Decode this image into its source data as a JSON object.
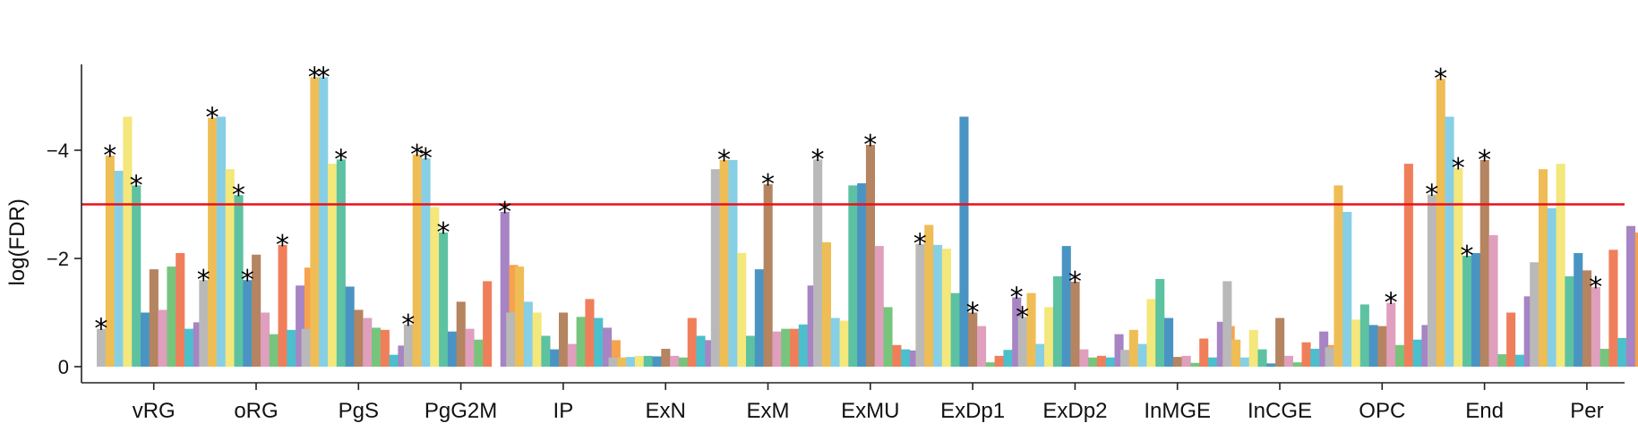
{
  "chart_data": {
    "type": "bar",
    "ylabel": "log(FDR)",
    "ylim": [
      0,
      5.6
    ],
    "y_reversed_sign": true,
    "yticks": [
      0,
      2,
      4
    ],
    "ytick_labels": [
      "0",
      "−2",
      "−4"
    ],
    "threshold": 3,
    "threshold_color": "#e8111a",
    "significance_marker": "*",
    "series_colors": [
      "#b9b9b9",
      "#efbd55",
      "#86cfe6",
      "#f4e77b",
      "#5cc2a2",
      "#4a94c3",
      "#b58460",
      "#df9fbd",
      "#77c57c",
      "#ef7f5a",
      "#4cbfcc",
      "#a784c4",
      "#f6a24e"
    ],
    "categories": [
      "vRG",
      "oRG",
      "PgS",
      "PgG2M",
      "IP",
      "ExN",
      "ExM",
      "ExMU",
      "ExDp1",
      "ExDp2",
      "InMGE",
      "InCGE",
      "OPC",
      "End",
      "Per"
    ],
    "groups": [
      {
        "category": "vRG",
        "values": [
          0.7,
          3.9,
          3.62,
          4.62,
          3.35,
          1.0,
          1.8,
          1.05,
          1.85,
          2.1,
          0.7,
          0.82,
          1.2
        ],
        "stars": [
          0,
          1,
          4
        ]
      },
      {
        "category": "oRG",
        "values": [
          1.6,
          4.6,
          4.62,
          3.65,
          3.17,
          1.6,
          2.07,
          1.0,
          0.6,
          2.25,
          0.68,
          1.5,
          1.83
        ],
        "stars": [
          0,
          1,
          4,
          5,
          9
        ]
      },
      {
        "category": "PgS",
        "values": [
          0.7,
          5.35,
          5.35,
          3.75,
          3.83,
          1.48,
          1.05,
          0.9,
          0.72,
          0.68,
          0.22,
          0.39,
          0.0
        ],
        "stars": [
          1,
          2,
          4
        ]
      },
      {
        "category": "PgG2M",
        "values": [
          0.78,
          3.92,
          3.85,
          2.95,
          2.48,
          0.65,
          1.2,
          0.7,
          0.5,
          1.58,
          0.0,
          2.86,
          1.88
        ],
        "stars": [
          0,
          1,
          2,
          4,
          11
        ]
      },
      {
        "category": "IP",
        "values": [
          1.0,
          1.85,
          1.2,
          1.0,
          0.57,
          0.32,
          1.0,
          0.42,
          0.92,
          1.25,
          0.9,
          0.72,
          0.49
        ],
        "stars": []
      },
      {
        "category": "ExN",
        "values": [
          0.17,
          0.17,
          0.18,
          0.2,
          0.2,
          0.19,
          0.33,
          0.2,
          0.17,
          0.9,
          0.57,
          0.49,
          0.72
        ],
        "stars": []
      },
      {
        "category": "ExM",
        "values": [
          3.65,
          3.82,
          3.82,
          2.1,
          0.57,
          1.8,
          3.37,
          0.65,
          0.7,
          0.7,
          0.78,
          1.5,
          0.72
        ],
        "stars": [
          1,
          6
        ]
      },
      {
        "category": "ExMU",
        "values": [
          3.83,
          2.3,
          0.9,
          0.85,
          3.35,
          3.39,
          4.1,
          2.23,
          1.1,
          0.4,
          0.32,
          0.3,
          0.0
        ],
        "stars": [
          0,
          6
        ]
      },
      {
        "category": "ExDp1",
        "values": [
          2.27,
          2.62,
          2.25,
          2.18,
          1.36,
          4.62,
          1.0,
          0.75,
          0.08,
          0.2,
          0.31,
          1.28,
          0.42
        ],
        "stars": [
          0,
          6,
          11
        ]
      },
      {
        "category": "ExDp2",
        "values": [
          0.92,
          1.36,
          0.42,
          1.1,
          1.67,
          2.23,
          1.57,
          0.32,
          0.17,
          0.2,
          0.17,
          0.6,
          0.22
        ],
        "stars": [
          0,
          6
        ]
      },
      {
        "category": "InMGE",
        "values": [
          0.31,
          0.68,
          0.42,
          1.25,
          1.62,
          0.9,
          0.18,
          0.2,
          0.07,
          0.52,
          0.17,
          0.83,
          0.75
        ],
        "stars": []
      },
      {
        "category": "InCGE",
        "values": [
          1.58,
          0.5,
          0.17,
          0.68,
          0.32,
          0.06,
          0.9,
          0.2,
          0.08,
          0.45,
          0.33,
          0.65,
          0.4
        ],
        "stars": []
      },
      {
        "category": "OPC",
        "values": [
          0.36,
          3.35,
          2.86,
          0.87,
          1.15,
          0.77,
          0.75,
          1.18,
          0.4,
          3.75,
          0.5,
          0.77,
          0.68
        ],
        "stars": [
          7
        ]
      },
      {
        "category": "End",
        "values": [
          3.18,
          5.32,
          4.62,
          3.67,
          2.05,
          2.1,
          3.82,
          2.43,
          0.23,
          1.0,
          0.22,
          1.3,
          1.16
        ],
        "stars": [
          0,
          1,
          3,
          4,
          6
        ]
      },
      {
        "category": "Per",
        "values": [
          1.93,
          3.65,
          2.93,
          3.75,
          1.67,
          2.1,
          1.78,
          1.47,
          0.33,
          2.16,
          0.53,
          2.6,
          2.48
        ],
        "stars": [
          7
        ]
      }
    ]
  }
}
